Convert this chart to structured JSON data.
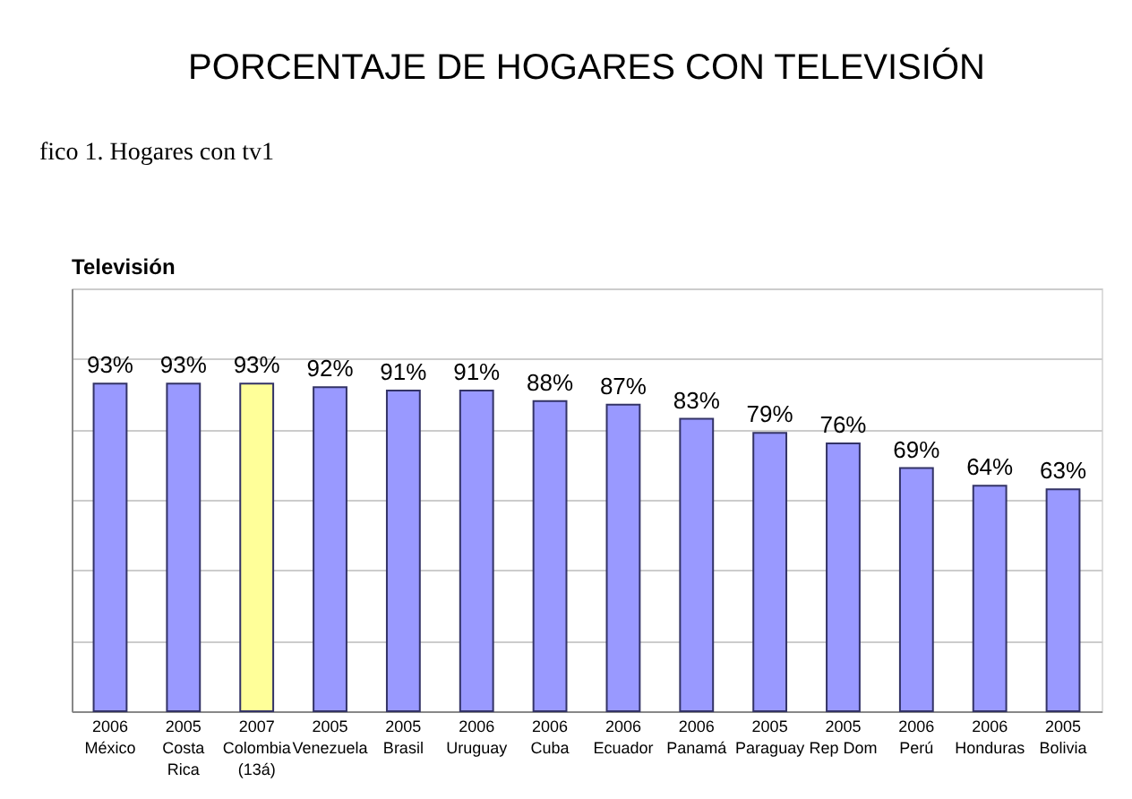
{
  "chart_data": {
    "type": "bar",
    "title": "PORCENTAJE DE HOGARES CON TELEVISIÓN",
    "subtitle": "Televisión",
    "annotations": [
      "fico 1. Hogares con tv1"
    ],
    "categories": [
      "2006\nMéxico",
      "2005\nCosta\nRica",
      "2007\nColombia\n(13á)",
      "2005\nVenezuela",
      "2005\nBrasil",
      "2006\nUruguay",
      "2006\nCuba",
      "2006\nEcuador",
      "2006\nPanamá",
      "2005\nParaguay",
      "2005\nRep Dom",
      "2006\nPerú",
      "2006\nHonduras",
      "2005\nBolivia"
    ],
    "values": [
      93,
      93,
      93,
      92,
      91,
      91,
      88,
      87,
      83,
      79,
      76,
      69,
      64,
      63
    ],
    "value_labels": [
      "93%",
      "93%",
      "93%",
      "92%",
      "91%",
      "91%",
      "88%",
      "87%",
      "83%",
      "79%",
      "76%",
      "69%",
      "64%",
      "63%"
    ],
    "colors": [
      "#9999ff",
      "#9999ff",
      "#ffff99",
      "#9999ff",
      "#9999ff",
      "#9999ff",
      "#9999ff",
      "#9999ff",
      "#9999ff",
      "#9999ff",
      "#9999ff",
      "#9999ff",
      "#9999ff",
      "#9999ff"
    ],
    "ylim": [
      0,
      120
    ],
    "grid": "y",
    "tick_labels": "x"
  }
}
